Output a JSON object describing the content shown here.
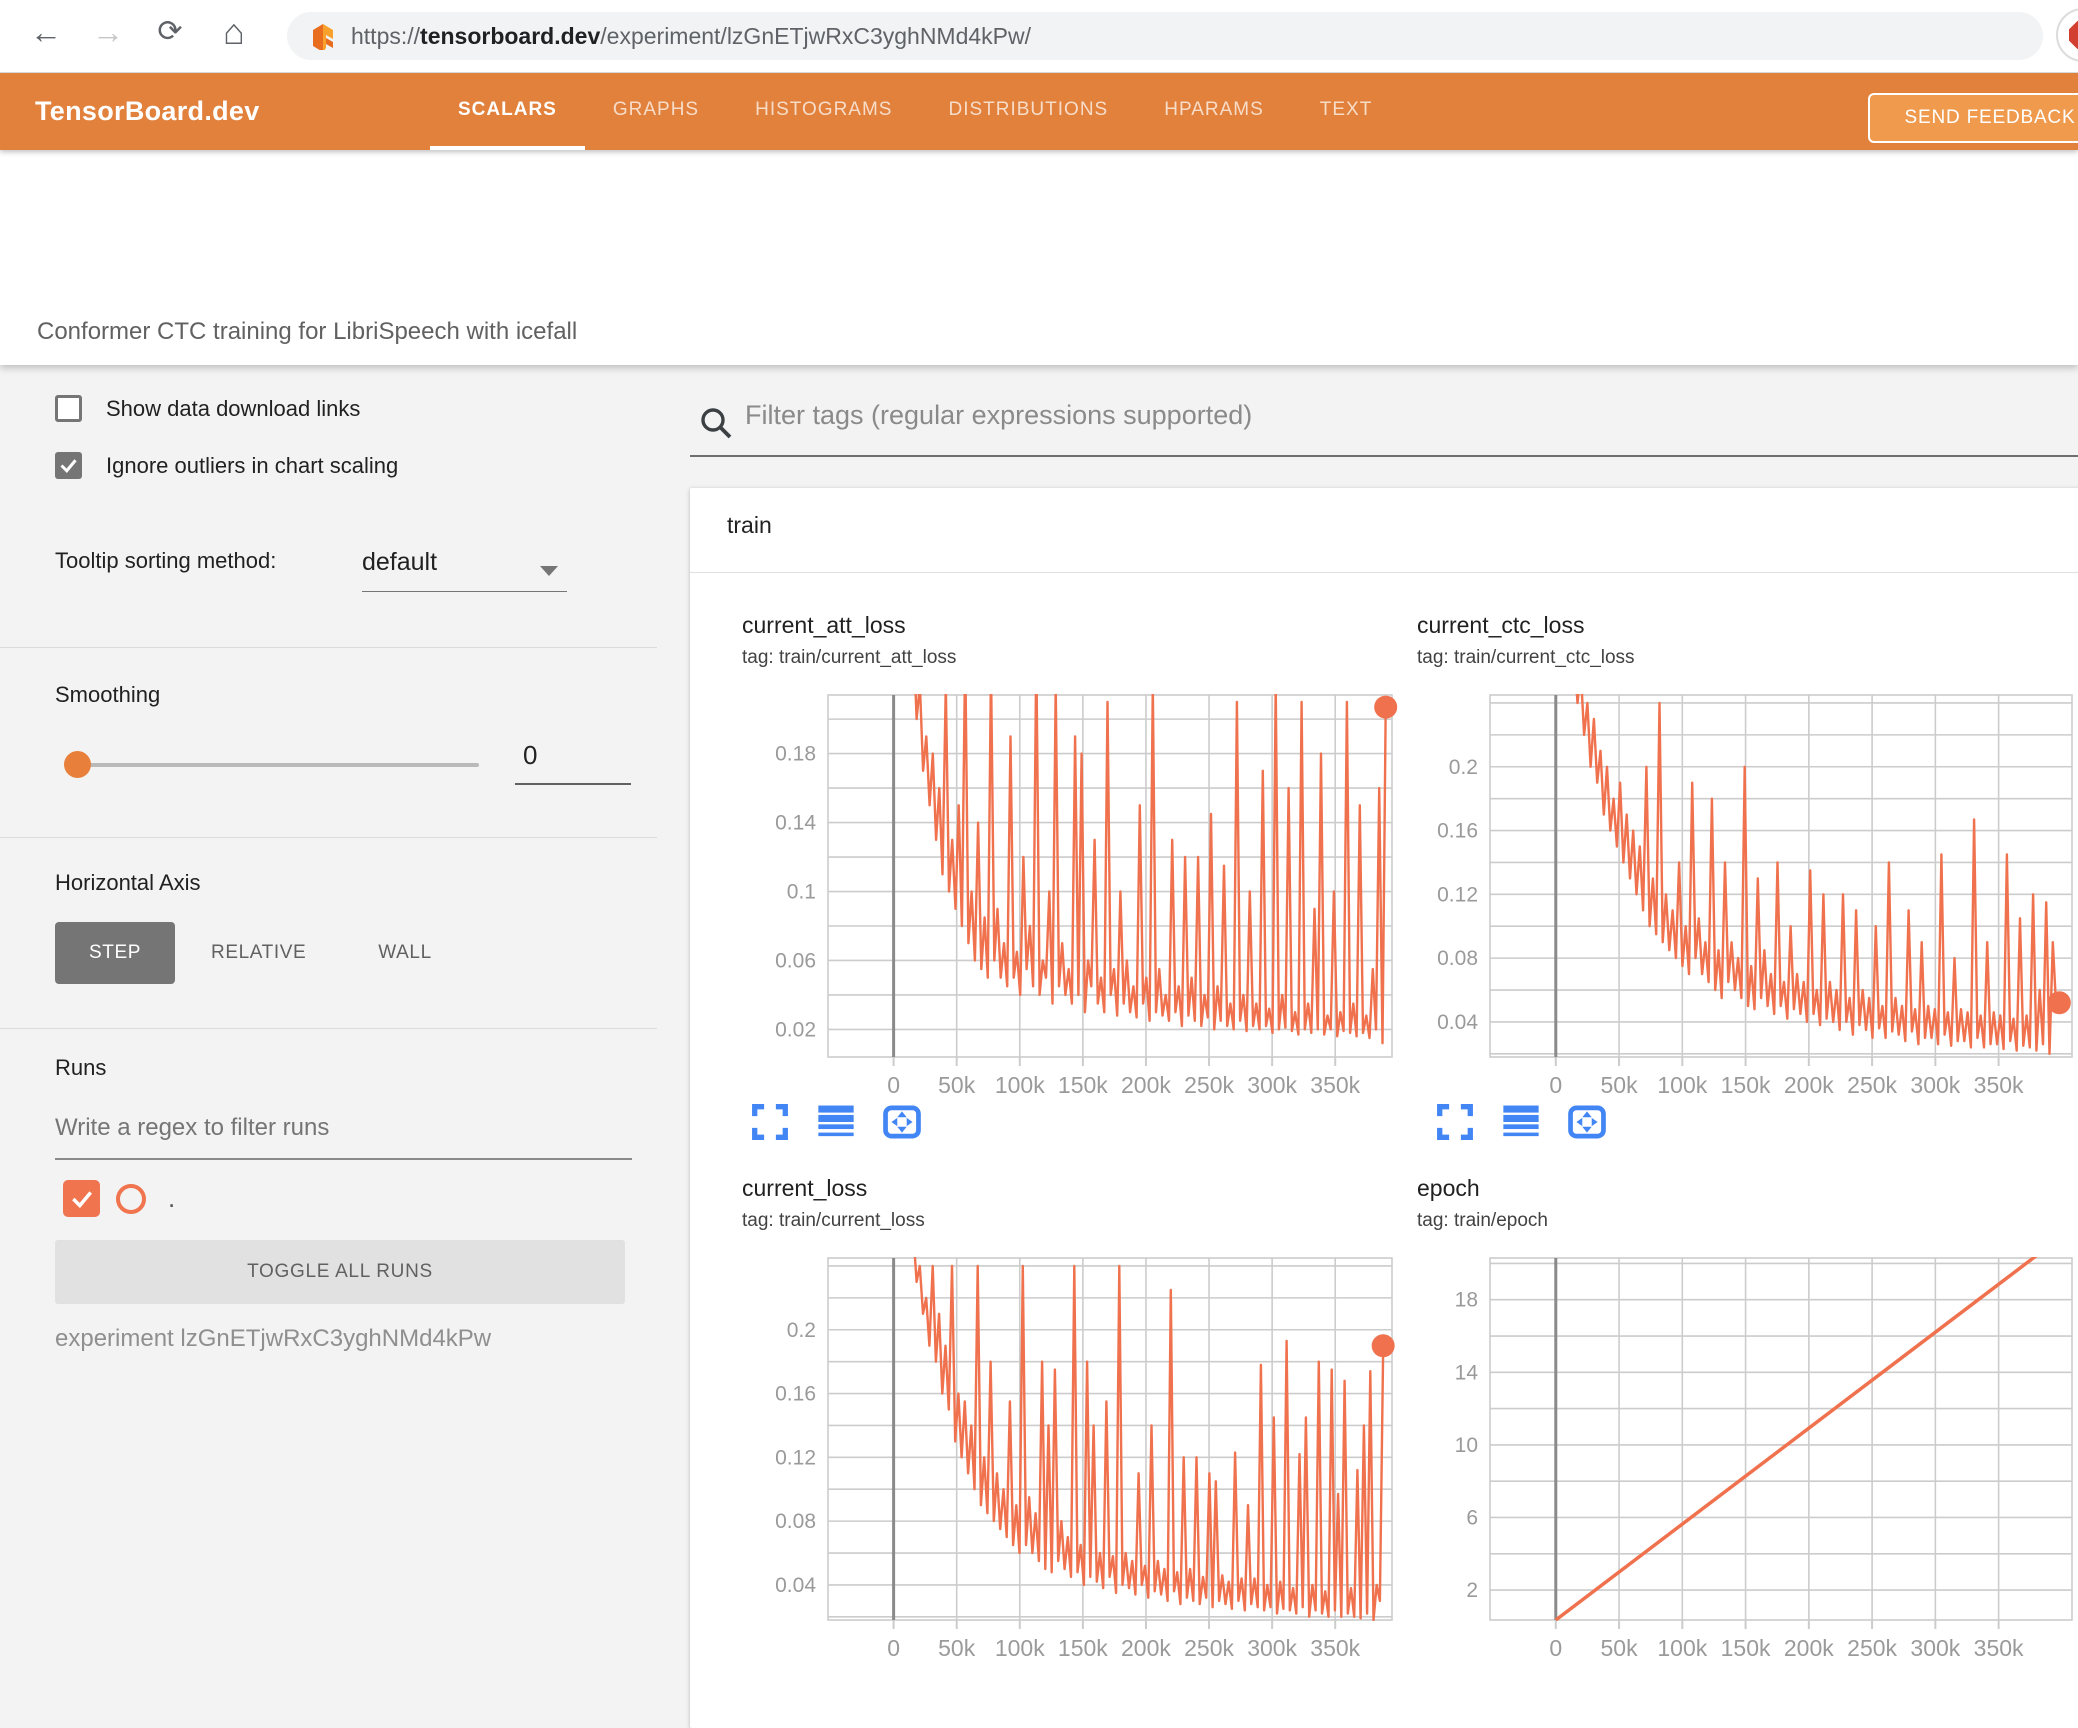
{
  "browser": {
    "url_prefix": "https://",
    "url_domain": "tensorboard.dev",
    "url_path": "/experiment/lzGnETjwRxC3yghNMd4kPw/"
  },
  "header": {
    "brand": "TensorBoard.dev",
    "tabs": [
      {
        "label": "SCALARS",
        "active": true
      },
      {
        "label": "GRAPHS",
        "active": false
      },
      {
        "label": "HISTOGRAMS",
        "active": false
      },
      {
        "label": "DISTRIBUTIONS",
        "active": false
      },
      {
        "label": "HPARAMS",
        "active": false
      },
      {
        "label": "TEXT",
        "active": false
      }
    ],
    "feedback_label": "SEND FEEDBACK"
  },
  "experiment": {
    "title": "Conformer CTC training for LibriSpeech with icefall"
  },
  "sidebar": {
    "checkboxes": [
      {
        "label": "Show data download links",
        "checked": false
      },
      {
        "label": "Ignore outliers in chart scaling",
        "checked": true
      }
    ],
    "tooltip_sort": {
      "label": "Tooltip sorting method:",
      "value": "default"
    },
    "smoothing": {
      "label": "Smoothing",
      "value": "0"
    },
    "horizontal_axis": {
      "label": "Horizontal Axis",
      "options": [
        {
          "label": "STEP",
          "selected": true
        },
        {
          "label": "RELATIVE",
          "selected": false
        },
        {
          "label": "WALL",
          "selected": false
        }
      ]
    },
    "runs": {
      "label": "Runs",
      "filter_placeholder": "Write a regex to filter runs",
      "run_name": ".",
      "toggle_button": "TOGGLE ALL RUNS",
      "experiment_line": "experiment lzGnETjwRxC3yghNMd4kPw"
    }
  },
  "main": {
    "filter_placeholder": "Filter tags (regular expressions supported)",
    "group": "train",
    "chart_actions": [
      "expand-chart",
      "log-y-axis",
      "fit-domain"
    ]
  },
  "colors": {
    "header_orange": "#e2813c",
    "accent_orange": "#f0714d",
    "button_orange": "#ef9a4d",
    "icon_blue": "#4285f4",
    "grid": "#cccccc",
    "zero_axis": "#8a8a8a",
    "tick_label": "#9a9a9a"
  },
  "chart_data": [
    {
      "type": "line",
      "title": "current_att_loss",
      "tag": "tag: train/current_att_loss",
      "legend_run": ".",
      "x_tick_values": [
        0,
        50000,
        100000,
        150000,
        200000,
        250000,
        300000,
        350000
      ],
      "x_tick_labels": [
        "0",
        "50k",
        "100k",
        "150k",
        "200k",
        "250k",
        "300k",
        "350k"
      ],
      "x_range": [
        -52000,
        395000
      ],
      "y_range": [
        0.004,
        0.214
      ],
      "y_grid_step": 0.02,
      "y_tick_values": [
        0.02,
        0.06,
        0.1,
        0.14,
        0.18
      ],
      "y_tick_labels": [
        "0.02",
        "0.06",
        "0.1",
        "0.14",
        "0.18"
      ],
      "data_x": [
        8000,
        390000
      ],
      "end_dot": true,
      "values": [
        0.3,
        0.26,
        0.23,
        0.25,
        0.2,
        0.22,
        0.17,
        0.19,
        0.15,
        0.18,
        0.13,
        0.16,
        0.11,
        0.22,
        0.1,
        0.13,
        0.09,
        0.15,
        0.08,
        0.24,
        0.07,
        0.1,
        0.06,
        0.14,
        0.055,
        0.085,
        0.05,
        0.23,
        0.06,
        0.09,
        0.05,
        0.07,
        0.045,
        0.19,
        0.05,
        0.065,
        0.04,
        0.12,
        0.055,
        0.08,
        0.045,
        0.24,
        0.04,
        0.06,
        0.05,
        0.1,
        0.035,
        0.22,
        0.045,
        0.07,
        0.04,
        0.055,
        0.035,
        0.19,
        0.04,
        0.18,
        0.03,
        0.06,
        0.045,
        0.13,
        0.035,
        0.05,
        0.03,
        0.21,
        0.04,
        0.055,
        0.028,
        0.1,
        0.035,
        0.06,
        0.03,
        0.045,
        0.027,
        0.15,
        0.035,
        0.05,
        0.025,
        0.22,
        0.03,
        0.055,
        0.028,
        0.04,
        0.025,
        0.13,
        0.03,
        0.045,
        0.022,
        0.12,
        0.028,
        0.05,
        0.025,
        0.12,
        0.022,
        0.04,
        0.027,
        0.145,
        0.02,
        0.045,
        0.025,
        0.115,
        0.022,
        0.035,
        0.02,
        0.21,
        0.025,
        0.04,
        0.019,
        0.1,
        0.022,
        0.035,
        0.02,
        0.17,
        0.022,
        0.032,
        0.018,
        0.22,
        0.02,
        0.04,
        0.021,
        0.16,
        0.019,
        0.03,
        0.017,
        0.21,
        0.02,
        0.035,
        0.018,
        0.09,
        0.02,
        0.18,
        0.017,
        0.028,
        0.02,
        0.1,
        0.016,
        0.03,
        0.019,
        0.21,
        0.018,
        0.035,
        0.016,
        0.15,
        0.018,
        0.028,
        0.015,
        0.055,
        0.02,
        0.16,
        0.012,
        0.207
      ]
    },
    {
      "type": "line",
      "title": "current_ctc_loss",
      "tag": "tag: train/current_ctc_loss",
      "legend_run": ".",
      "x_tick_values": [
        0,
        50000,
        100000,
        150000,
        200000,
        250000,
        300000,
        350000
      ],
      "x_tick_labels": [
        "0",
        "50k",
        "100k",
        "150k",
        "200k",
        "250k",
        "300k",
        "350k"
      ],
      "x_range": [
        -52000,
        408000
      ],
      "y_range": [
        0.018,
        0.245
      ],
      "y_grid_step": 0.02,
      "y_tick_values": [
        0.04,
        0.08,
        0.12,
        0.16,
        0.2
      ],
      "y_tick_labels": [
        "0.04",
        "0.08",
        "0.12",
        "0.16",
        "0.2"
      ],
      "data_x": [
        12000,
        398000
      ],
      "end_dot": true,
      "values": [
        0.3,
        0.27,
        0.24,
        0.26,
        0.22,
        0.24,
        0.2,
        0.23,
        0.19,
        0.21,
        0.17,
        0.2,
        0.16,
        0.18,
        0.15,
        0.19,
        0.14,
        0.17,
        0.13,
        0.16,
        0.12,
        0.15,
        0.11,
        0.2,
        0.1,
        0.13,
        0.095,
        0.24,
        0.09,
        0.12,
        0.085,
        0.11,
        0.08,
        0.14,
        0.075,
        0.1,
        0.07,
        0.19,
        0.08,
        0.105,
        0.07,
        0.09,
        0.065,
        0.18,
        0.06,
        0.085,
        0.055,
        0.14,
        0.065,
        0.09,
        0.06,
        0.08,
        0.055,
        0.2,
        0.05,
        0.075,
        0.048,
        0.13,
        0.055,
        0.085,
        0.05,
        0.07,
        0.045,
        0.14,
        0.05,
        0.065,
        0.042,
        0.1,
        0.048,
        0.07,
        0.045,
        0.065,
        0.04,
        0.135,
        0.045,
        0.06,
        0.038,
        0.12,
        0.042,
        0.065,
        0.04,
        0.06,
        0.035,
        0.12,
        0.04,
        0.055,
        0.032,
        0.11,
        0.038,
        0.06,
        0.035,
        0.055,
        0.03,
        0.1,
        0.036,
        0.05,
        0.03,
        0.14,
        0.034,
        0.055,
        0.032,
        0.05,
        0.028,
        0.11,
        0.034,
        0.048,
        0.026,
        0.09,
        0.03,
        0.05,
        0.03,
        0.048,
        0.026,
        0.145,
        0.032,
        0.046,
        0.025,
        0.08,
        0.028,
        0.048,
        0.028,
        0.046,
        0.024,
        0.167,
        0.03,
        0.044,
        0.024,
        0.09,
        0.026,
        0.046,
        0.026,
        0.044,
        0.023,
        0.145,
        0.028,
        0.042,
        0.022,
        0.105,
        0.025,
        0.044,
        0.024,
        0.12,
        0.022,
        0.06,
        0.026,
        0.115,
        0.02,
        0.09,
        0.05,
        0.052
      ]
    },
    {
      "type": "line",
      "title": "current_loss",
      "tag": "tag: train/current_loss",
      "legend_run": ".",
      "x_tick_values": [
        0,
        50000,
        100000,
        150000,
        200000,
        250000,
        300000,
        350000
      ],
      "x_tick_labels": [
        "0",
        "50k",
        "100k",
        "150k",
        "200k",
        "250k",
        "300k",
        "350k"
      ],
      "x_range": [
        -52000,
        395000
      ],
      "y_range": [
        0.018,
        0.245
      ],
      "y_grid_step": 0.02,
      "y_tick_values": [
        0.04,
        0.08,
        0.12,
        0.16,
        0.2
      ],
      "y_tick_labels": [
        "0.04",
        "0.08",
        "0.12",
        "0.16",
        "0.2"
      ],
      "data_x": [
        8000,
        388000
      ],
      "end_dot": true,
      "values": [
        0.3,
        0.27,
        0.25,
        0.26,
        0.23,
        0.24,
        0.21,
        0.22,
        0.19,
        0.24,
        0.18,
        0.21,
        0.16,
        0.19,
        0.15,
        0.24,
        0.13,
        0.16,
        0.12,
        0.155,
        0.11,
        0.14,
        0.1,
        0.24,
        0.09,
        0.12,
        0.085,
        0.18,
        0.08,
        0.11,
        0.075,
        0.1,
        0.07,
        0.155,
        0.065,
        0.09,
        0.06,
        0.24,
        0.065,
        0.095,
        0.06,
        0.085,
        0.055,
        0.18,
        0.05,
        0.14,
        0.048,
        0.175,
        0.055,
        0.08,
        0.05,
        0.07,
        0.045,
        0.24,
        0.048,
        0.065,
        0.04,
        0.18,
        0.045,
        0.14,
        0.042,
        0.06,
        0.038,
        0.155,
        0.045,
        0.058,
        0.035,
        0.24,
        0.04,
        0.06,
        0.038,
        0.055,
        0.034,
        0.11,
        0.04,
        0.052,
        0.032,
        0.14,
        0.036,
        0.055,
        0.034,
        0.05,
        0.03,
        0.225,
        0.036,
        0.048,
        0.028,
        0.12,
        0.032,
        0.05,
        0.03,
        0.12,
        0.028,
        0.045,
        0.032,
        0.11,
        0.026,
        0.105,
        0.03,
        0.046,
        0.028,
        0.042,
        0.025,
        0.123,
        0.03,
        0.044,
        0.024,
        0.09,
        0.028,
        0.044,
        0.026,
        0.178,
        0.024,
        0.04,
        0.026,
        0.145,
        0.022,
        0.042,
        0.025,
        0.193,
        0.024,
        0.038,
        0.022,
        0.122,
        0.026,
        0.145,
        0.02,
        0.04,
        0.024,
        0.18,
        0.022,
        0.036,
        0.02,
        0.175,
        0.024,
        0.097,
        0.02,
        0.168,
        0.022,
        0.038,
        0.02,
        0.112,
        0.019,
        0.14,
        0.022,
        0.174,
        0.018,
        0.04,
        0.03,
        0.19
      ]
    },
    {
      "type": "line",
      "title": "epoch",
      "tag": "tag: train/epoch",
      "legend_run": ".",
      "x_tick_values": [
        0,
        50000,
        100000,
        150000,
        200000,
        250000,
        300000,
        350000
      ],
      "x_tick_labels": [
        "0",
        "50k",
        "100k",
        "150k",
        "200k",
        "250k",
        "300k",
        "350k"
      ],
      "x_range": [
        -52000,
        408000
      ],
      "y_range": [
        0.35,
        20.3
      ],
      "y_grid_step": 2,
      "y_tick_values": [
        2,
        6,
        10,
        14,
        18
      ],
      "y_tick_labels": [
        "2",
        "6",
        "10",
        "14",
        "18"
      ],
      "data_x": [
        0,
        383000
      ],
      "end_dot": false,
      "line_width": 3.5,
      "values": [
        0.35,
        20.6
      ]
    }
  ]
}
